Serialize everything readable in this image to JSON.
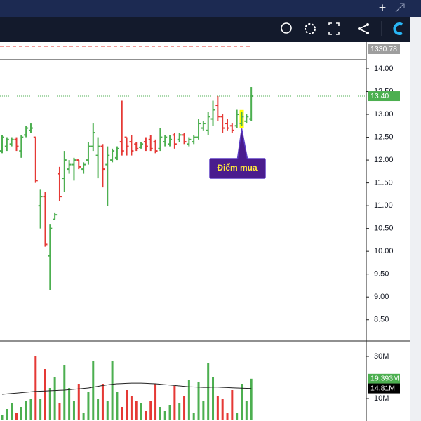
{
  "chart_data": {
    "type": "ohlc",
    "up_color": "#4caf50",
    "down_color": "#e53935",
    "open": [
      12.2,
      12.3,
      12.35,
      12.45,
      12.2,
      12.55,
      12.65,
      12.5,
      11.0,
      11.2,
      9.9,
      10.7,
      11.7,
      11.6,
      11.8,
      11.9,
      12.0,
      11.8,
      12.0,
      12.3,
      12.1,
      12.3,
      11.9,
      12.0,
      12.05,
      12.4,
      12.5,
      12.4,
      12.35,
      12.28,
      12.4,
      12.45,
      12.4,
      12.25,
      12.4,
      12.35,
      12.55,
      12.45,
      12.55,
      12.35,
      12.4,
      12.5,
      12.7,
      12.65,
      12.9,
      13.2,
      12.95,
      12.8,
      12.75,
      12.75,
      12.8,
      12.85,
      12.9
    ],
    "high": [
      12.55,
      12.5,
      12.5,
      12.5,
      12.55,
      12.75,
      12.8,
      12.5,
      11.35,
      11.3,
      10.6,
      10.85,
      11.85,
      12.2,
      12.0,
      12.05,
      12.0,
      11.95,
      12.4,
      12.8,
      12.5,
      12.35,
      12.3,
      12.25,
      12.3,
      13.3,
      12.5,
      12.55,
      12.4,
      12.4,
      12.5,
      12.55,
      12.45,
      12.7,
      12.55,
      12.55,
      12.6,
      12.6,
      12.6,
      12.5,
      12.55,
      12.9,
      12.85,
      13.05,
      13.3,
      13.4,
      13.0,
      12.9,
      12.8,
      13.1,
      13.05,
      13.0,
      13.6
    ],
    "low": [
      12.15,
      12.2,
      12.3,
      12.2,
      12.05,
      12.5,
      12.6,
      11.5,
      10.5,
      10.1,
      9.15,
      10.7,
      11.1,
      11.3,
      11.7,
      11.55,
      11.8,
      11.7,
      11.9,
      12.2,
      11.6,
      11.4,
      11.0,
      11.95,
      12.0,
      12.1,
      12.1,
      12.1,
      12.2,
      12.25,
      12.2,
      12.2,
      12.15,
      12.2,
      12.3,
      12.3,
      12.25,
      12.4,
      12.35,
      12.3,
      12.35,
      12.45,
      12.65,
      12.55,
      12.75,
      12.85,
      12.6,
      12.65,
      12.6,
      12.7,
      12.75,
      12.8,
      12.85
    ],
    "close": [
      12.5,
      12.45,
      12.45,
      12.3,
      12.5,
      12.7,
      12.7,
      11.55,
      11.2,
      10.15,
      10.5,
      10.8,
      11.2,
      12.0,
      11.9,
      12.0,
      11.85,
      11.9,
      12.3,
      12.6,
      12.3,
      11.8,
      12.1,
      12.2,
      12.25,
      12.2,
      12.3,
      12.2,
      12.25,
      12.35,
      12.3,
      12.25,
      12.2,
      12.5,
      12.5,
      12.45,
      12.35,
      12.55,
      12.4,
      12.45,
      12.5,
      12.8,
      12.8,
      12.95,
      13.1,
      12.95,
      12.7,
      12.7,
      12.65,
      13.0,
      12.95,
      12.95,
      13.4
    ],
    "ylim": [
      8.05,
      14.2
    ],
    "yticks": [
      {
        "value": 8.5,
        "label": "8.50"
      },
      {
        "value": 9,
        "label": "9.00"
      },
      {
        "value": 9.5,
        "label": "9.50"
      },
      {
        "value": 10,
        "label": "10.00"
      },
      {
        "value": 10.5,
        "label": "10.50"
      },
      {
        "value": 11,
        "label": "11.00"
      },
      {
        "value": 11.5,
        "label": "11.50"
      },
      {
        "value": 12,
        "label": "12.00"
      },
      {
        "value": 12.5,
        "label": "12.50"
      },
      {
        "value": 13,
        "label": "13.00"
      },
      {
        "value": 13.5,
        "label": "13.50"
      },
      {
        "value": 14,
        "label": "14.00"
      }
    ],
    "last_price": {
      "value": 13.4,
      "label": "13.40"
    },
    "index_value": {
      "value": 1330.78,
      "label": "1330.78"
    },
    "annotation": {
      "text": "Điểm mua",
      "bar": 50
    },
    "volume": {
      "values": [
        2,
        5,
        8,
        3,
        6,
        9,
        10,
        30,
        10,
        24,
        15,
        20,
        8,
        26,
        15,
        9,
        17,
        3,
        13,
        28,
        10,
        17,
        9,
        28,
        13,
        6,
        14,
        11,
        9,
        8,
        4,
        9,
        17,
        6,
        4,
        7,
        16,
        8,
        11,
        19,
        3,
        18,
        9,
        27,
        20,
        11,
        10,
        3,
        14,
        3,
        17,
        9,
        19.393
      ],
      "ma": [
        12,
        12.2,
        12.4,
        12.6,
        12.8,
        13,
        13.2,
        13.4,
        13.5,
        13.6,
        13.7,
        13.8,
        13.9,
        14,
        14.2,
        14.4,
        14.6,
        14.8,
        15,
        15.4,
        15.8,
        16.2,
        16.5,
        16.8,
        17,
        17.1,
        17.2,
        17.3,
        17.3,
        17.3,
        17.2,
        17.1,
        17,
        16.8,
        16.6,
        16.4,
        16.2,
        16,
        15.8,
        15.6,
        15.5,
        15.4,
        15.3,
        15.3,
        15.4,
        15.4,
        15.3,
        15.2,
        15.1,
        15,
        14.9,
        14.85,
        14.81
      ],
      "ylim": [
        0,
        36.67
      ],
      "yticks": [
        {
          "value": 10,
          "label": "10M"
        },
        {
          "value": 30,
          "label": "30M"
        }
      ],
      "last": {
        "value": 19.393,
        "label": "19.393M"
      },
      "ma_last": {
        "value": 14.81,
        "label": "14.81M"
      }
    }
  }
}
